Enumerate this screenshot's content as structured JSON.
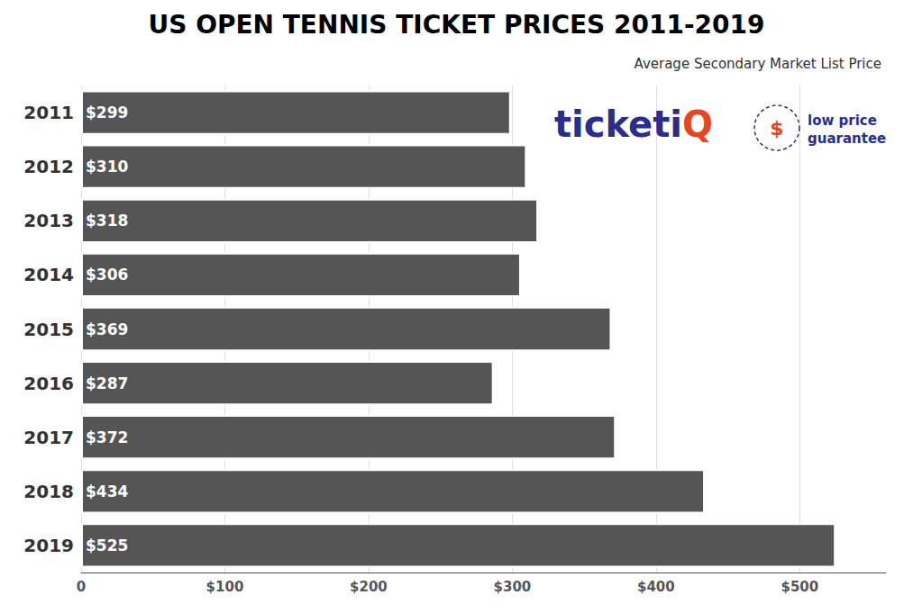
{
  "chart_data": {
    "type": "bar",
    "orientation": "horizontal",
    "title": "US OPEN TENNIS TICKET PRICES 2011-2019",
    "subtitle": "Average Secondary Market List Price",
    "categories": [
      "2011",
      "2012",
      "2013",
      "2014",
      "2015",
      "2016",
      "2017",
      "2018",
      "2019"
    ],
    "values": [
      299,
      310,
      318,
      306,
      369,
      287,
      372,
      434,
      525
    ],
    "value_labels": [
      "$299",
      "$310",
      "$318",
      "$306",
      "$369",
      "$287",
      "$372",
      "$434",
      "$525"
    ],
    "data_labels": true,
    "color": "#555555",
    "xlim": [
      0,
      560
    ],
    "xticks": [
      0,
      {
        "value": 100,
        "label": "$100"
      },
      {
        "value": 200,
        "label": "$200"
      },
      {
        "value": 300,
        "label": "$300"
      },
      {
        "value": 400,
        "label": "$400"
      },
      {
        "value": 500,
        "label": "$500"
      }
    ],
    "grid": true,
    "annotations": [
      {
        "text": "ticket",
        "color": "#2B2D8E"
      },
      {
        "text": "i",
        "color": "#2B2D8E"
      },
      {
        "text": "Q",
        "color": "#E8451E"
      },
      {
        "text": "$",
        "color": "#E8451E"
      },
      {
        "text": "low price\nguarantee",
        "color": "#2B2D8E"
      }
    ]
  }
}
